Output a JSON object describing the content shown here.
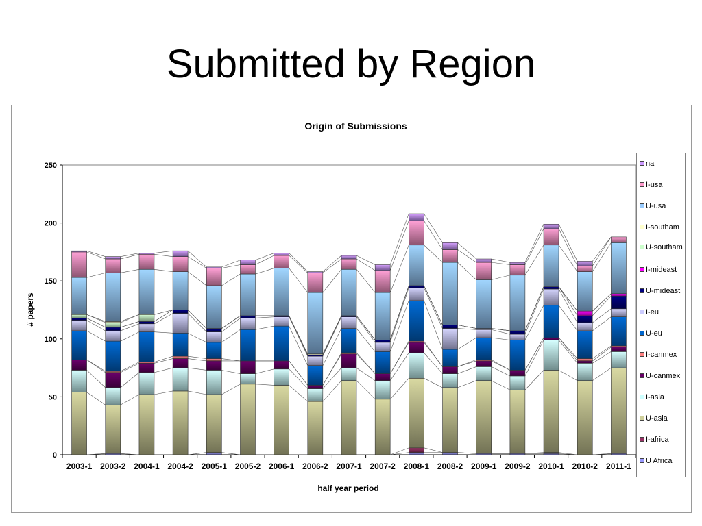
{
  "slide": {
    "title": "Submitted by Region"
  },
  "chart_data": {
    "type": "bar",
    "stacked": true,
    "title": "Origin of Submissions",
    "xlabel": "half year period",
    "ylabel": "# papers",
    "ylim": [
      0,
      250
    ],
    "yticks": [
      0,
      50,
      100,
      150,
      200,
      250
    ],
    "grid": false,
    "legend_position": "right",
    "categories": [
      "2003-1",
      "2003-2",
      "2004-1",
      "2004-2",
      "2005-1",
      "2005-2",
      "2006-1",
      "2006-2",
      "2007-1",
      "2007-2",
      "2008-1",
      "2008-2",
      "2009-1",
      "2009-2",
      "2010-1",
      "2010-2",
      "2011-1"
    ],
    "series": [
      {
        "name": "U Africa",
        "color": "#9999ff",
        "values": [
          0,
          1,
          0,
          0,
          2,
          0,
          0,
          0,
          0,
          0,
          2,
          2,
          1,
          1,
          1,
          0,
          1
        ]
      },
      {
        "name": "I-africa",
        "color": "#993366",
        "values": [
          0,
          0,
          0,
          0,
          0,
          0,
          0,
          0,
          0,
          0,
          4,
          0,
          0,
          0,
          1,
          0,
          0
        ]
      },
      {
        "name": "U-asia",
        "color": "#cfcf9a",
        "values": [
          54,
          42,
          52,
          55,
          50,
          61,
          60,
          46,
          64,
          48,
          60,
          56,
          63,
          55,
          71,
          64,
          74
        ]
      },
      {
        "name": "I-asia",
        "color": "#ccffff",
        "values": [
          19,
          15,
          19,
          20,
          21,
          9,
          14,
          11,
          11,
          16,
          22,
          12,
          12,
          12,
          26,
          15,
          14
        ]
      },
      {
        "name": "U-canmex",
        "color": "#660066",
        "values": [
          9,
          13,
          8,
          8,
          8,
          11,
          7,
          3,
          12,
          6,
          9,
          6,
          5,
          5,
          2,
          2,
          4
        ]
      },
      {
        "name": "I-canmex",
        "color": "#ff8080",
        "values": [
          0,
          1,
          1,
          2,
          2,
          0,
          0,
          0,
          1,
          0,
          1,
          0,
          1,
          0,
          0,
          2,
          1
        ]
      },
      {
        "name": "U-eu",
        "color": "#0066cc",
        "values": [
          25,
          26,
          26,
          20,
          14,
          27,
          30,
          17,
          21,
          19,
          35,
          15,
          19,
          26,
          28,
          24,
          25
        ]
      },
      {
        "name": "I-eu",
        "color": "#ccccff",
        "values": [
          9,
          9,
          7,
          17,
          9,
          10,
          8,
          8,
          10,
          8,
          11,
          18,
          7,
          5,
          14,
          7,
          7
        ]
      },
      {
        "name": "U-mideast",
        "color": "#000080",
        "values": [
          2,
          3,
          2,
          3,
          3,
          2,
          1,
          1,
          1,
          2,
          2,
          3,
          1,
          3,
          2,
          6,
          11
        ]
      },
      {
        "name": "I-mideast",
        "color": "#ff00ff",
        "values": [
          0,
          0,
          0,
          0,
          0,
          0,
          0,
          0,
          0,
          0,
          0,
          0,
          0,
          0,
          0,
          4,
          2
        ]
      },
      {
        "name": "U-southam",
        "color": "#ccffcc",
        "values": [
          3,
          4,
          6,
          0,
          0,
          0,
          0,
          0,
          0,
          0,
          0,
          0,
          0,
          0,
          0,
          0,
          0
        ]
      },
      {
        "name": "I-southam",
        "color": "#ffffcc",
        "values": [
          0,
          1,
          0,
          0,
          0,
          0,
          0,
          1,
          0,
          0,
          0,
          0,
          0,
          0,
          0,
          0,
          0
        ]
      },
      {
        "name": "U-usa",
        "color": "#99ccff",
        "values": [
          32,
          42,
          39,
          33,
          37,
          36,
          41,
          53,
          40,
          41,
          35,
          54,
          42,
          48,
          36,
          34,
          44
        ]
      },
      {
        "name": "I-usa",
        "color": "#ff99cc",
        "values": [
          22,
          12,
          13,
          13,
          15,
          8,
          11,
          17,
          9,
          19,
          21,
          11,
          15,
          9,
          14,
          5,
          5
        ]
      },
      {
        "name": "na",
        "color": "#cc99ff",
        "values": [
          1,
          2,
          1,
          5,
          1,
          4,
          2,
          1,
          3,
          5,
          6,
          6,
          3,
          2,
          4,
          4,
          0
        ]
      }
    ]
  }
}
